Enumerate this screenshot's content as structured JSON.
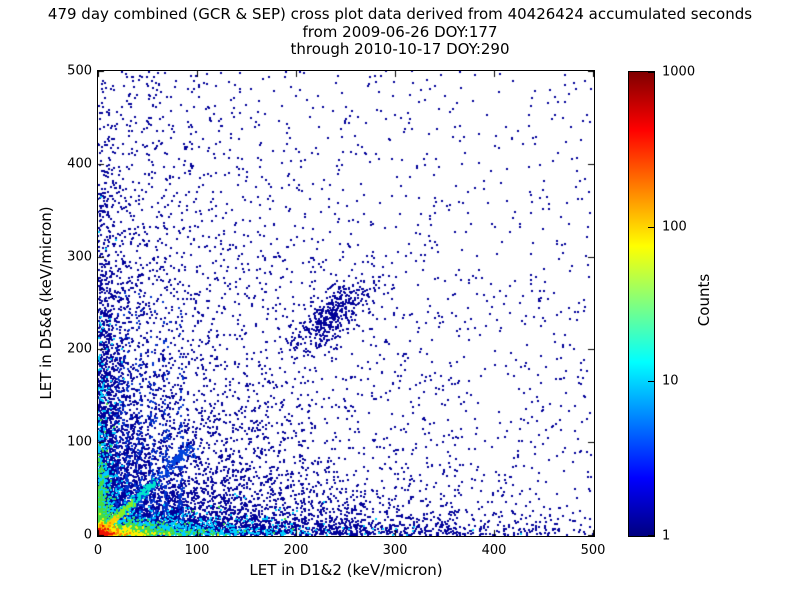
{
  "chart_data": {
    "type": "scatter",
    "title_line1": "479 day combined (GCR & SEP) cross plot data derived from 40426424 accumulated seconds",
    "title_line2": "from 2009-06-26 DOY:177",
    "title_line3": "through 2010-10-17 DOY:290",
    "xlabel": "LET in D1&2 (keV/micron)",
    "ylabel": "LET in D5&6 (keV/micron)",
    "xlim": [
      0,
      500
    ],
    "ylim": [
      0,
      500
    ],
    "xticks": [
      0,
      100,
      200,
      300,
      400,
      500
    ],
    "yticks": [
      0,
      100,
      200,
      300,
      400,
      500
    ],
    "grid": false,
    "background": "#ffffff",
    "axis_color": "#000000",
    "colorbar": {
      "label": "Counts",
      "scale": "log",
      "range": [
        1,
        1000
      ],
      "ticks": [
        1,
        10,
        100,
        1000
      ],
      "colormap": "jet",
      "colormap_stops": [
        {
          "pos": 0.0,
          "color": "#000080"
        },
        {
          "pos": 0.125,
          "color": "#0000ff"
        },
        {
          "pos": 0.375,
          "color": "#00ffff"
        },
        {
          "pos": 0.625,
          "color": "#ffff00"
        },
        {
          "pos": 0.875,
          "color": "#ff0000"
        },
        {
          "pos": 1.0,
          "color": "#800000"
        }
      ]
    },
    "point_seed": 42,
    "density_components": [
      {
        "desc": "sparse count=1 background over full plane",
        "type": "uniform",
        "n": 1000,
        "color": "#000099",
        "size": 2
      },
      {
        "desc": "general falloff of sparse hits from origin",
        "type": "exp",
        "n": 3000,
        "xscale": 150,
        "yscale": 150,
        "color": "#000099",
        "size": 2
      },
      {
        "desc": "tall sparse column near left edge",
        "type": "exp",
        "n": 900,
        "xscale": 70,
        "yscale": 300,
        "color": "#000099",
        "size": 2
      },
      {
        "desc": "dense bottom band",
        "type": "exp",
        "n": 2200,
        "xscale": 95,
        "yscale": 25,
        "color": "#000099",
        "size": 2
      },
      {
        "desc": "thin bottom band extending far right",
        "type": "exp",
        "n": 1200,
        "xscale": 210,
        "yscale": 9,
        "color": "#000099",
        "size": 2
      },
      {
        "desc": "dense left band",
        "type": "exp",
        "n": 1700,
        "xscale": 15,
        "yscale": 130,
        "color": "#000099",
        "size": 2
      },
      {
        "desc": "faint vertical streak fingers",
        "type": "streaks",
        "xs": [
          20,
          30,
          42,
          55,
          68,
          84
        ],
        "nEach": 120,
        "yscale": 85,
        "ymax": 265,
        "xjitter": 2.2,
        "color": "#0033cc",
        "size": 2
      },
      {
        "desc": "diagonal cluster near (237,237)",
        "type": "blob",
        "n": 430,
        "cx": 237,
        "cy": 237,
        "along": 27,
        "across": 10,
        "color": "#000099",
        "size": 2
      },
      {
        "desc": "stopping-particle diagonal from origin",
        "type": "diag",
        "n": 420,
        "max": 95,
        "jitter": 3,
        "color": "#0044dd",
        "size": 2
      },
      {
        "desc": "bottom band ~10 counts",
        "type": "exp",
        "n": 1400,
        "xscale": 55,
        "yscale": 7,
        "color": "#00ccff",
        "size": 2
      },
      {
        "desc": "left band ~10 counts",
        "type": "exp",
        "n": 650,
        "xscale": 7,
        "yscale": 55,
        "color": "#00ccff",
        "size": 2
      },
      {
        "desc": "diagonal ~10 counts",
        "type": "diag",
        "n": 260,
        "max": 58,
        "jitter": 2,
        "color": "#00e6cc",
        "size": 2
      },
      {
        "desc": "bottom band ~30 counts",
        "type": "exp",
        "n": 800,
        "xscale": 30,
        "yscale": 4.5,
        "color": "#44dd44",
        "size": 2
      },
      {
        "desc": "left band ~30 counts",
        "type": "exp",
        "n": 320,
        "xscale": 4.5,
        "yscale": 28,
        "color": "#44dd44",
        "size": 2
      },
      {
        "desc": "diagonal ~30 counts",
        "type": "diag",
        "n": 160,
        "max": 36,
        "jitter": 1.5,
        "color": "#88ee22",
        "size": 2
      },
      {
        "desc": "origin region ~100 counts",
        "type": "exp",
        "n": 430,
        "xscale": 15,
        "yscale": 3.2,
        "color": "#ffee00",
        "size": 2
      },
      {
        "desc": "origin diagonal ~100 counts",
        "type": "diag",
        "n": 110,
        "max": 20,
        "jitter": 1.2,
        "color": "#ffcc00",
        "size": 2
      },
      {
        "desc": "origin region ~300 counts",
        "type": "exp",
        "n": 250,
        "xscale": 6.5,
        "yscale": 2.4,
        "color": "#ff8800",
        "size": 2
      },
      {
        "desc": "origin hot core ~1000 counts",
        "type": "exp",
        "n": 170,
        "xscale": 3.2,
        "yscale": 1.6,
        "color": "#ee1100",
        "size": 2
      }
    ]
  }
}
